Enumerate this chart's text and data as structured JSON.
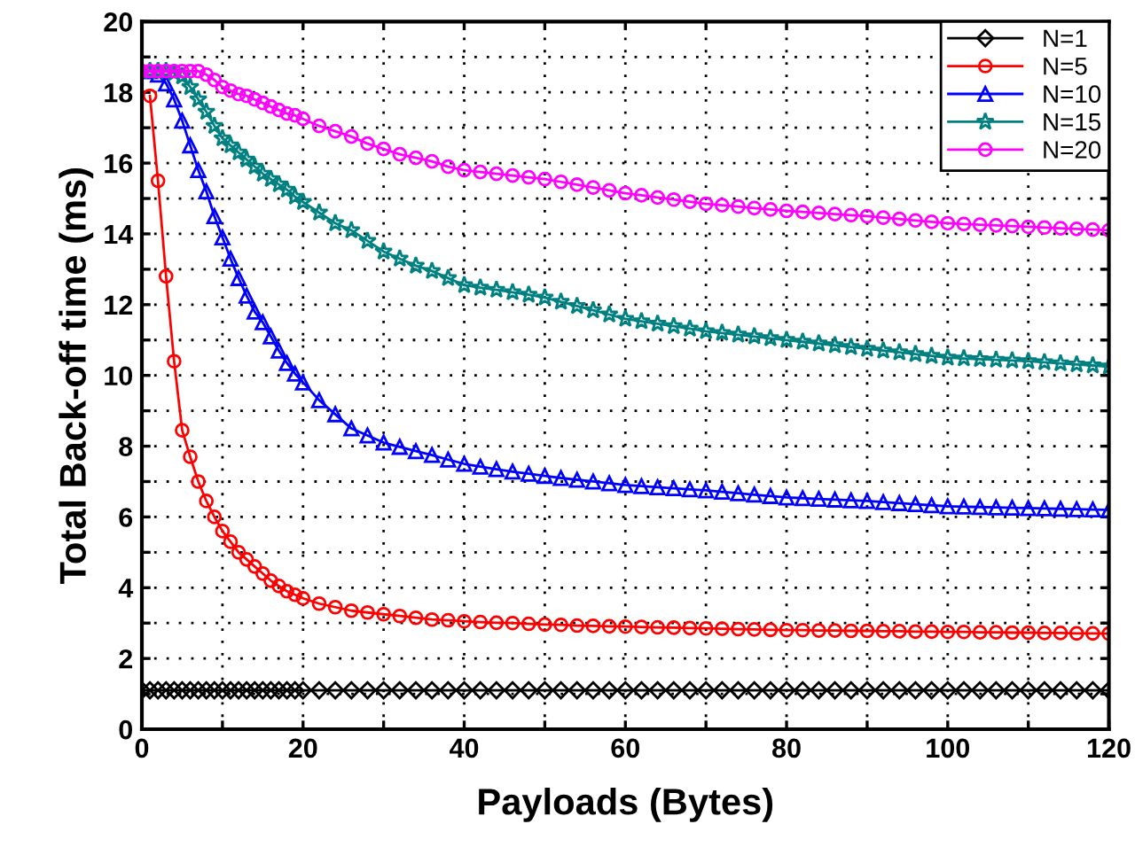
{
  "chart_data": {
    "type": "line",
    "xlabel": "Payloads (Bytes)",
    "ylabel": "Total Back-off time (ms)",
    "x": [
      0,
      1,
      2,
      3,
      4,
      5,
      6,
      7,
      8,
      9,
      10,
      11,
      12,
      13,
      14,
      15,
      16,
      17,
      18,
      19,
      20,
      22,
      24,
      26,
      28,
      30,
      32,
      34,
      36,
      38,
      40,
      42,
      44,
      46,
      48,
      50,
      52,
      54,
      56,
      58,
      60,
      62,
      64,
      66,
      68,
      70,
      72,
      74,
      76,
      78,
      80,
      82,
      84,
      86,
      88,
      90,
      92,
      94,
      96,
      98,
      100,
      102,
      104,
      106,
      108,
      110,
      112,
      114,
      116,
      118,
      120
    ],
    "xlim": [
      0,
      120
    ],
    "ylim": [
      0,
      20
    ],
    "xticks": [
      0,
      {
        "value": 10,
        "label": null
      },
      20,
      {
        "value": 30,
        "label": null
      },
      40,
      {
        "value": 50,
        "label": null
      },
      60,
      {
        "value": 70,
        "label": null
      },
      80,
      {
        "value": 90,
        "label": null
      },
      100,
      {
        "value": 110,
        "label": null
      },
      120
    ],
    "yticks": [
      0,
      {
        "value": 1,
        "label": null
      },
      2,
      {
        "value": 3,
        "label": null
      },
      4,
      {
        "value": 5,
        "label": null
      },
      6,
      {
        "value": 7,
        "label": null
      },
      8,
      {
        "value": 9,
        "label": null
      },
      10,
      {
        "value": 11,
        "label": null
      },
      12,
      {
        "value": 13,
        "label": null
      },
      14,
      {
        "value": 15,
        "label": null
      },
      16,
      {
        "value": 17,
        "label": null
      },
      18,
      {
        "value": 19,
        "label": null
      },
      20
    ],
    "grid": true,
    "legend": "top right",
    "line_style": "solid",
    "series": [
      {
        "name": "N=1",
        "color": "#000000",
        "marker": "diamond",
        "values": [
          1.1,
          1.1,
          1.1,
          1.1,
          1.1,
          1.1,
          1.1,
          1.1,
          1.1,
          1.1,
          1.1,
          1.1,
          1.1,
          1.1,
          1.1,
          1.1,
          1.1,
          1.1,
          1.1,
          1.1,
          1.1,
          1.1,
          1.1,
          1.1,
          1.1,
          1.1,
          1.1,
          1.1,
          1.1,
          1.1,
          1.1,
          1.1,
          1.1,
          1.1,
          1.1,
          1.1,
          1.1,
          1.1,
          1.1,
          1.1,
          1.1,
          1.1,
          1.1,
          1.1,
          1.1,
          1.1,
          1.1,
          1.1,
          1.1,
          1.1,
          1.1,
          1.1,
          1.1,
          1.1,
          1.1,
          1.1,
          1.1,
          1.1,
          1.1,
          1.1,
          1.1,
          1.1,
          1.1,
          1.1,
          1.1,
          1.1,
          1.1,
          1.1,
          1.1,
          1.1,
          1.1
        ]
      },
      {
        "name": "N=5",
        "color": "#ff0000",
        "marker": "circle",
        "values": [
          null,
          17.9,
          15.5,
          12.8,
          10.4,
          8.45,
          7.7,
          7.0,
          6.45,
          6.0,
          5.6,
          5.3,
          5.0,
          4.8,
          4.6,
          4.4,
          4.2,
          4.05,
          3.9,
          3.8,
          3.7,
          3.55,
          3.45,
          3.35,
          3.3,
          3.25,
          3.2,
          3.15,
          3.1,
          3.08,
          3.05,
          3.03,
          3.01,
          3.0,
          2.98,
          2.96,
          2.95,
          2.93,
          2.92,
          2.91,
          2.9,
          2.89,
          2.88,
          2.87,
          2.86,
          2.85,
          2.84,
          2.83,
          2.82,
          2.81,
          2.8,
          2.8,
          2.79,
          2.79,
          2.78,
          2.78,
          2.77,
          2.77,
          2.76,
          2.76,
          2.75,
          2.75,
          2.74,
          2.74,
          2.73,
          2.73,
          2.72,
          2.72,
          2.71,
          2.71,
          2.7
        ]
      },
      {
        "name": "N=10",
        "color": "#0000ff",
        "marker": "triangle",
        "values": [
          18.6,
          18.6,
          18.5,
          18.25,
          17.8,
          17.2,
          16.5,
          15.8,
          15.2,
          14.5,
          13.9,
          13.3,
          12.75,
          12.25,
          11.8,
          11.5,
          11.1,
          10.7,
          10.35,
          10.05,
          9.8,
          9.3,
          8.9,
          8.5,
          8.3,
          8.1,
          7.98,
          7.86,
          7.75,
          7.62,
          7.5,
          7.42,
          7.35,
          7.28,
          7.22,
          7.16,
          7.1,
          7.05,
          7.0,
          6.95,
          6.9,
          6.87,
          6.84,
          6.81,
          6.78,
          6.75,
          6.71,
          6.67,
          6.63,
          6.59,
          6.55,
          6.53,
          6.51,
          6.49,
          6.47,
          6.45,
          6.42,
          6.39,
          6.36,
          6.33,
          6.3,
          6.29,
          6.28,
          6.27,
          6.26,
          6.25,
          6.24,
          6.23,
          6.22,
          6.21,
          6.2
        ]
      },
      {
        "name": "N=15",
        "color": "#008080",
        "marker": "star",
        "values": [
          18.6,
          18.6,
          18.6,
          18.6,
          18.55,
          18.45,
          18.15,
          17.8,
          17.45,
          17.05,
          16.7,
          16.5,
          16.3,
          16.1,
          15.9,
          15.7,
          15.55,
          15.4,
          15.25,
          15.05,
          14.9,
          14.6,
          14.3,
          14.1,
          13.8,
          13.5,
          13.3,
          13.1,
          12.95,
          12.75,
          12.55,
          12.48,
          12.42,
          12.35,
          12.28,
          12.2,
          12.08,
          11.96,
          11.84,
          11.72,
          11.6,
          11.53,
          11.46,
          11.39,
          11.32,
          11.25,
          11.2,
          11.15,
          11.1,
          11.05,
          11.0,
          10.95,
          10.9,
          10.85,
          10.8,
          10.75,
          10.7,
          10.65,
          10.6,
          10.55,
          10.5,
          10.48,
          10.46,
          10.44,
          10.42,
          10.4,
          10.37,
          10.34,
          10.31,
          10.28,
          10.25
        ]
      },
      {
        "name": "N=20",
        "color": "#ff00ff",
        "marker": "circle",
        "values": [
          18.6,
          18.6,
          18.6,
          18.6,
          18.6,
          18.6,
          18.6,
          18.6,
          18.5,
          18.35,
          18.15,
          18.05,
          17.95,
          17.9,
          17.8,
          17.7,
          17.6,
          17.5,
          17.4,
          17.35,
          17.25,
          17.05,
          16.9,
          16.75,
          16.55,
          16.4,
          16.25,
          16.15,
          16.05,
          15.9,
          15.8,
          15.75,
          15.7,
          15.65,
          15.6,
          15.55,
          15.47,
          15.39,
          15.31,
          15.23,
          15.15,
          15.09,
          15.03,
          14.97,
          14.91,
          14.85,
          14.81,
          14.77,
          14.73,
          14.69,
          14.65,
          14.62,
          14.59,
          14.56,
          14.53,
          14.5,
          14.46,
          14.42,
          14.38,
          14.34,
          14.3,
          14.28,
          14.26,
          14.24,
          14.22,
          14.2,
          14.18,
          14.16,
          14.14,
          14.12,
          14.1
        ]
      }
    ]
  }
}
